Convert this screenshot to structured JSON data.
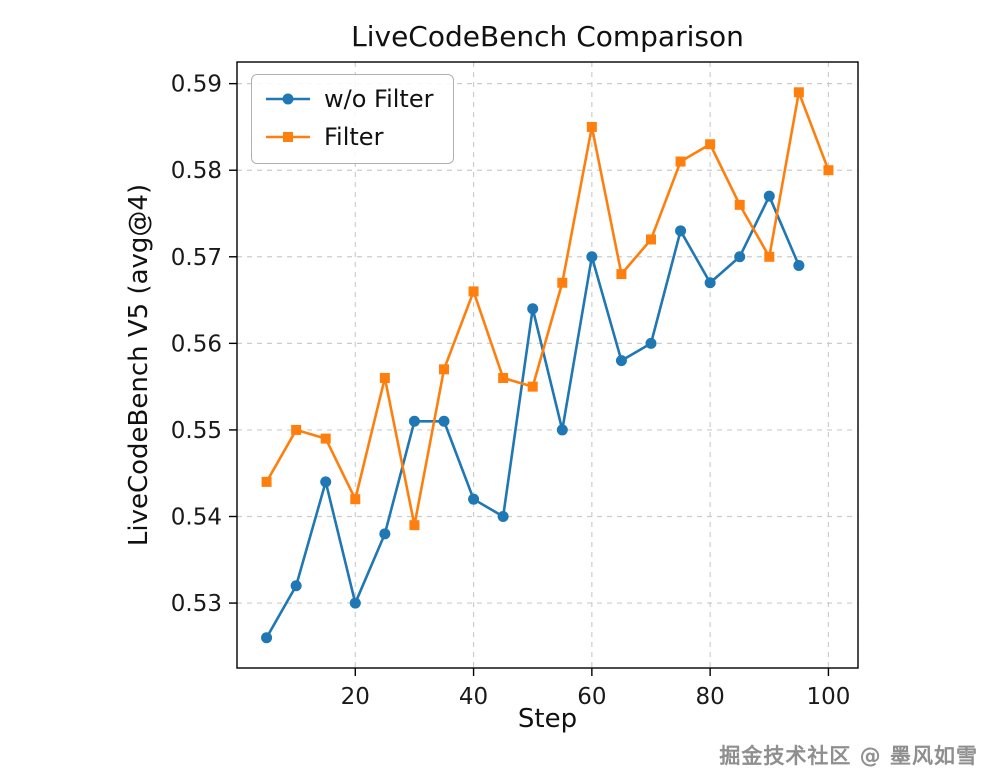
{
  "chart_data": {
    "type": "line",
    "title": "LiveCodeBench Comparison",
    "xlabel": "Step",
    "ylabel": "LiveCodeBench V5 (avg@4)",
    "xlim": [
      0,
      105
    ],
    "ylim": [
      0.5225,
      0.5925
    ],
    "x_ticks": [
      20,
      40,
      60,
      80,
      100
    ],
    "y_ticks": [
      0.53,
      0.54,
      0.55,
      0.56,
      0.57,
      0.58,
      0.59
    ],
    "grid": true,
    "grid_style": "dashed",
    "legend_position": "upper-left",
    "series": [
      {
        "name": "w/o Filter",
        "color": "#1f77b4",
        "marker": "circle",
        "x": [
          5,
          10,
          15,
          20,
          25,
          30,
          35,
          40,
          45,
          50,
          55,
          60,
          65,
          70,
          75,
          80,
          85,
          90,
          95
        ],
        "values": [
          0.526,
          0.532,
          0.544,
          0.53,
          0.538,
          0.551,
          0.551,
          0.542,
          0.54,
          0.564,
          0.55,
          0.57,
          0.558,
          0.56,
          0.573,
          0.567,
          0.57,
          0.577,
          0.569
        ]
      },
      {
        "name": "Filter",
        "color": "#ff7f0e",
        "marker": "square",
        "x": [
          5,
          10,
          15,
          20,
          25,
          30,
          35,
          40,
          45,
          50,
          55,
          60,
          65,
          70,
          75,
          80,
          85,
          90,
          95,
          100
        ],
        "values": [
          0.544,
          0.55,
          0.549,
          0.542,
          0.556,
          0.539,
          0.557,
          0.566,
          0.556,
          0.555,
          0.567,
          0.585,
          0.568,
          0.572,
          0.581,
          0.583,
          0.576,
          0.57,
          0.589,
          0.58
        ]
      }
    ]
  },
  "watermark": {
    "text": "掘金技术社区 @ 墨风如雪"
  }
}
